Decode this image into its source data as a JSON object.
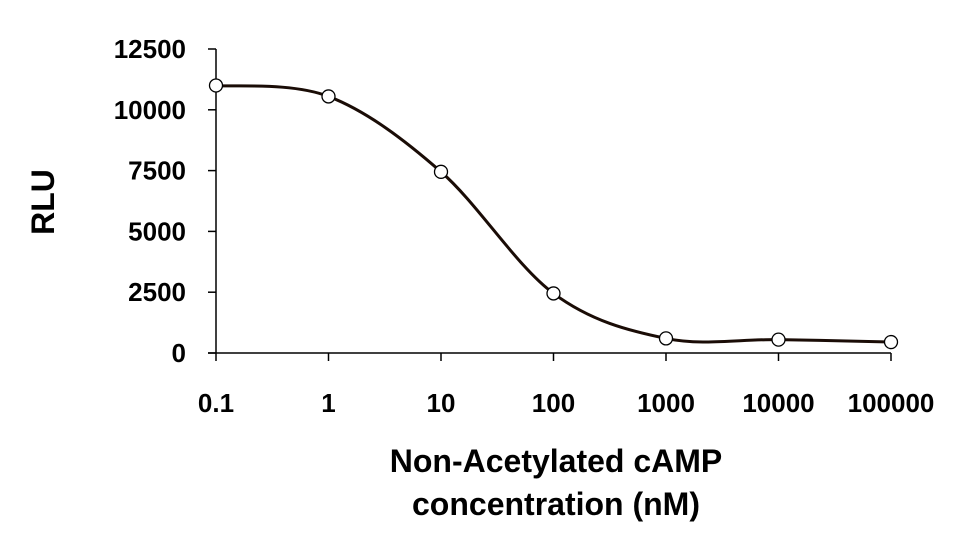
{
  "chart_data": {
    "type": "scatter",
    "title": "",
    "xlabel_lines": [
      "Non-Acetylated cAMP",
      "concentration (nM)"
    ],
    "ylabel": "RLU",
    "x_scale": "log",
    "xlim": [
      0.1,
      100000
    ],
    "ylim": [
      0,
      12500
    ],
    "x_ticks": [
      0.1,
      1,
      10,
      100,
      1000,
      10000,
      100000
    ],
    "x_tick_labels": [
      "0.1",
      "1",
      "10",
      "100",
      "1000",
      "10000",
      "100000"
    ],
    "y_ticks": [
      0,
      2500,
      5000,
      7500,
      10000,
      12500
    ],
    "y_tick_labels": [
      "0",
      "2500",
      "5000",
      "7500",
      "10000",
      "12500"
    ],
    "grid": false,
    "legend": "none",
    "series": [
      {
        "x": [
          0.1,
          1,
          10,
          100,
          1000,
          10000,
          100000
        ],
        "y": [
          11000,
          10550,
          7450,
          2450,
          600,
          550,
          450
        ]
      }
    ],
    "curve_color": "#1a0c06",
    "marker_fill": "#ffffff",
    "marker_stroke": "#000000"
  }
}
